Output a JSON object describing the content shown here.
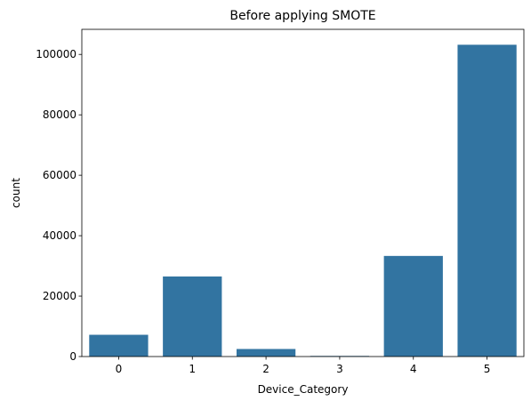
{
  "chart_data": {
    "type": "bar",
    "title": "Before applying SMOTE",
    "xlabel": "Device_Category",
    "ylabel": "count",
    "categories": [
      "0",
      "1",
      "2",
      "3",
      "4",
      "5"
    ],
    "values": [
      7200,
      26500,
      2500,
      200,
      33300,
      103200
    ],
    "ylim": [
      0,
      108300
    ],
    "yticks": [
      0,
      20000,
      40000,
      60000,
      80000,
      100000
    ],
    "grid": false,
    "bar_color": "#3274a1"
  }
}
